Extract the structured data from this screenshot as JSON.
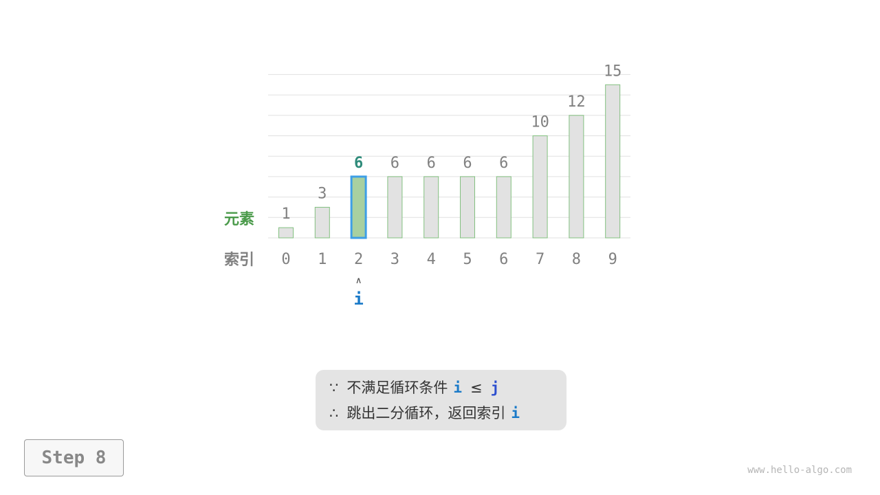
{
  "chart_data": {
    "type": "bar",
    "categories": [
      "0",
      "1",
      "2",
      "3",
      "4",
      "5",
      "6",
      "7",
      "8",
      "9"
    ],
    "values": [
      1,
      3,
      6,
      6,
      6,
      6,
      6,
      10,
      12,
      15
    ],
    "row_labels": {
      "element": "元素",
      "index": "索引"
    },
    "highlight_index": 2,
    "ylim": [
      0,
      16
    ],
    "grid": true,
    "colors": {
      "bar": "#e2e2e2",
      "bar_border": "#82c07f",
      "highlight_fill": "#a8d0a0",
      "highlight_border": "#3d9ee6",
      "highlight_label": "#2e8b7a",
      "label": "#808080",
      "element_label": "#4a9a4a",
      "pointer": "#1a7ac8"
    }
  },
  "pointer": {
    "arrow": "∧",
    "label": "i"
  },
  "message": {
    "line1": {
      "symbol": "∵",
      "text": "不满足循环条件",
      "var1": "i",
      "op": "≤",
      "var2": "j"
    },
    "line2": {
      "symbol": "∴",
      "text": "跳出二分循环，返回索引",
      "var1": "i"
    }
  },
  "step_label": "Step 8",
  "watermark": "www.hello-algo.com"
}
